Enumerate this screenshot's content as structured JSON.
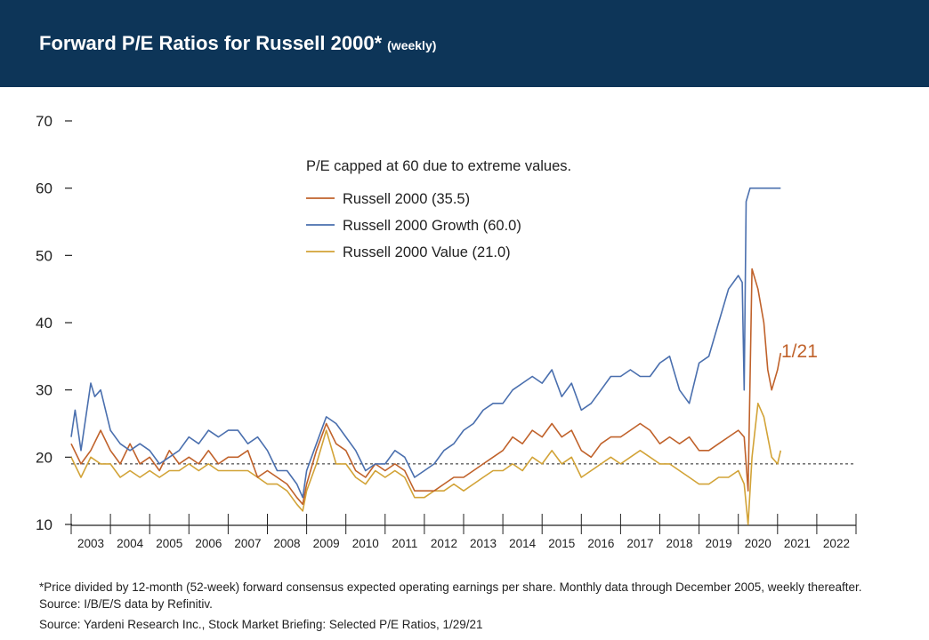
{
  "header": {
    "title": "Forward P/E Ratios for Russell 2000*",
    "subtitle": "(weekly)"
  },
  "colors": {
    "header_bg": "#0d3558",
    "russell_2000": "#c0622b",
    "growth": "#4a6fae",
    "value": "#d2a337"
  },
  "chart_data": {
    "type": "line",
    "title": "Forward P/E Ratios for Russell 2000*",
    "subtitle": "(weekly)",
    "annotation": "P/E capped at 60 due to extreme values.",
    "end_label": "1/21",
    "x_tick_labels": [
      "2003",
      "2004",
      "2005",
      "2006",
      "2007",
      "2008",
      "2009",
      "2010",
      "2011",
      "2012",
      "2013",
      "2014",
      "2015",
      "2016",
      "2017",
      "2018",
      "2019",
      "2020",
      "2021",
      "2022"
    ],
    "y_tick_labels": [
      "10",
      "20",
      "30",
      "40",
      "50",
      "60",
      "70"
    ],
    "xlim": [
      2003.0,
      2023.0
    ],
    "ylim": [
      10,
      70
    ],
    "reference_line": 19,
    "grid": false,
    "legend_position": "top-center",
    "series": [
      {
        "name": "Russell 2000 (35.5)",
        "color_key": "russell_2000",
        "x": [
          2003.0,
          2003.25,
          2003.5,
          2003.75,
          2004.0,
          2004.25,
          2004.5,
          2004.75,
          2005.0,
          2005.25,
          2005.5,
          2005.75,
          2006.0,
          2006.25,
          2006.5,
          2006.75,
          2007.0,
          2007.25,
          2007.5,
          2007.75,
          2008.0,
          2008.25,
          2008.5,
          2008.75,
          2008.9,
          2009.0,
          2009.25,
          2009.5,
          2009.75,
          2010.0,
          2010.25,
          2010.5,
          2010.75,
          2011.0,
          2011.25,
          2011.5,
          2011.75,
          2012.0,
          2012.25,
          2012.5,
          2012.75,
          2013.0,
          2013.25,
          2013.5,
          2013.75,
          2014.0,
          2014.25,
          2014.5,
          2014.75,
          2015.0,
          2015.25,
          2015.5,
          2015.75,
          2016.0,
          2016.25,
          2016.5,
          2016.75,
          2017.0,
          2017.25,
          2017.5,
          2017.75,
          2018.0,
          2018.25,
          2018.5,
          2018.75,
          2019.0,
          2019.25,
          2019.5,
          2019.75,
          2020.0,
          2020.15,
          2020.25,
          2020.35,
          2020.5,
          2020.65,
          2020.75,
          2020.85,
          2021.0,
          2021.08
        ],
        "y": [
          22,
          19,
          21,
          24,
          21,
          19,
          22,
          19,
          20,
          18,
          21,
          19,
          20,
          19,
          21,
          19,
          20,
          20,
          21,
          17,
          18,
          17,
          16,
          14,
          13,
          16,
          21,
          25,
          22,
          21,
          18,
          17,
          19,
          18,
          19,
          18,
          15,
          15,
          15,
          16,
          17,
          17,
          18,
          19,
          20,
          21,
          23,
          22,
          24,
          23,
          25,
          23,
          24,
          21,
          20,
          22,
          23,
          23,
          24,
          25,
          24,
          22,
          23,
          22,
          23,
          21,
          21,
          22,
          23,
          24,
          23,
          15,
          48,
          45,
          40,
          33,
          30,
          33,
          35.5
        ]
      },
      {
        "name": "Russell 2000 Growth (60.0)",
        "color_key": "growth",
        "x": [
          2003.0,
          2003.1,
          2003.25,
          2003.5,
          2003.6,
          2003.75,
          2004.0,
          2004.25,
          2004.5,
          2004.75,
          2005.0,
          2005.25,
          2005.5,
          2005.75,
          2006.0,
          2006.25,
          2006.5,
          2006.75,
          2007.0,
          2007.25,
          2007.5,
          2007.75,
          2008.0,
          2008.25,
          2008.5,
          2008.75,
          2008.9,
          2009.0,
          2009.25,
          2009.5,
          2009.75,
          2010.0,
          2010.25,
          2010.5,
          2010.75,
          2011.0,
          2011.25,
          2011.5,
          2011.75,
          2012.0,
          2012.25,
          2012.5,
          2012.75,
          2013.0,
          2013.25,
          2013.5,
          2013.75,
          2014.0,
          2014.25,
          2014.5,
          2014.75,
          2015.0,
          2015.25,
          2015.5,
          2015.75,
          2016.0,
          2016.25,
          2016.5,
          2016.75,
          2017.0,
          2017.25,
          2017.5,
          2017.75,
          2018.0,
          2018.25,
          2018.5,
          2018.75,
          2019.0,
          2019.25,
          2019.5,
          2019.75,
          2020.0,
          2020.1,
          2020.15,
          2020.2,
          2020.3,
          2021.08
        ],
        "y": [
          23,
          27,
          21,
          31,
          29,
          30,
          24,
          22,
          21,
          22,
          21,
          19,
          20,
          21,
          23,
          22,
          24,
          23,
          24,
          24,
          22,
          23,
          21,
          18,
          18,
          16,
          14,
          18,
          22,
          26,
          25,
          23,
          21,
          18,
          19,
          19,
          21,
          20,
          17,
          18,
          19,
          21,
          22,
          24,
          25,
          27,
          28,
          28,
          30,
          31,
          32,
          31,
          33,
          29,
          31,
          27,
          28,
          30,
          32,
          32,
          33,
          32,
          32,
          34,
          35,
          30,
          28,
          34,
          35,
          40,
          45,
          47,
          46,
          30,
          58,
          60,
          60
        ]
      },
      {
        "name": "Russell 2000 Value (21.0)",
        "color_key": "value",
        "x": [
          2003.0,
          2003.25,
          2003.5,
          2003.75,
          2004.0,
          2004.25,
          2004.5,
          2004.75,
          2005.0,
          2005.25,
          2005.5,
          2005.75,
          2006.0,
          2006.25,
          2006.5,
          2006.75,
          2007.0,
          2007.25,
          2007.5,
          2007.75,
          2008.0,
          2008.25,
          2008.5,
          2008.75,
          2008.9,
          2009.0,
          2009.25,
          2009.5,
          2009.75,
          2010.0,
          2010.25,
          2010.5,
          2010.75,
          2011.0,
          2011.25,
          2011.5,
          2011.75,
          2012.0,
          2012.25,
          2012.5,
          2012.75,
          2013.0,
          2013.25,
          2013.5,
          2013.75,
          2014.0,
          2014.25,
          2014.5,
          2014.75,
          2015.0,
          2015.25,
          2015.5,
          2015.75,
          2016.0,
          2016.25,
          2016.5,
          2016.75,
          2017.0,
          2017.25,
          2017.5,
          2017.75,
          2018.0,
          2018.25,
          2018.5,
          2018.75,
          2019.0,
          2019.25,
          2019.5,
          2019.75,
          2020.0,
          2020.15,
          2020.25,
          2020.35,
          2020.5,
          2020.65,
          2020.75,
          2020.85,
          2021.0,
          2021.08
        ],
        "y": [
          20,
          17,
          20,
          19,
          19,
          17,
          18,
          17,
          18,
          17,
          18,
          18,
          19,
          18,
          19,
          18,
          18,
          18,
          18,
          17,
          16,
          16,
          15,
          13,
          12,
          15,
          19,
          24,
          19,
          19,
          17,
          16,
          18,
          17,
          18,
          17,
          14,
          14,
          15,
          15,
          16,
          15,
          16,
          17,
          18,
          18,
          19,
          18,
          20,
          19,
          21,
          19,
          20,
          17,
          18,
          19,
          20,
          19,
          20,
          21,
          20,
          19,
          19,
          18,
          17,
          16,
          16,
          17,
          17,
          18,
          16,
          10,
          20,
          28,
          26,
          23,
          20,
          19,
          21
        ]
      }
    ]
  },
  "footnote": {
    "line1": "*Price divided by 12-month (52-week) forward consensus expected operating earnings per share. Monthly data through December 2005, weekly thereafter.  Source: I/B/E/S data by Refinitiv.",
    "source": "Source: Yardeni Research Inc., Stock Market Briefing: Selected P/E Ratios, 1/29/21"
  }
}
